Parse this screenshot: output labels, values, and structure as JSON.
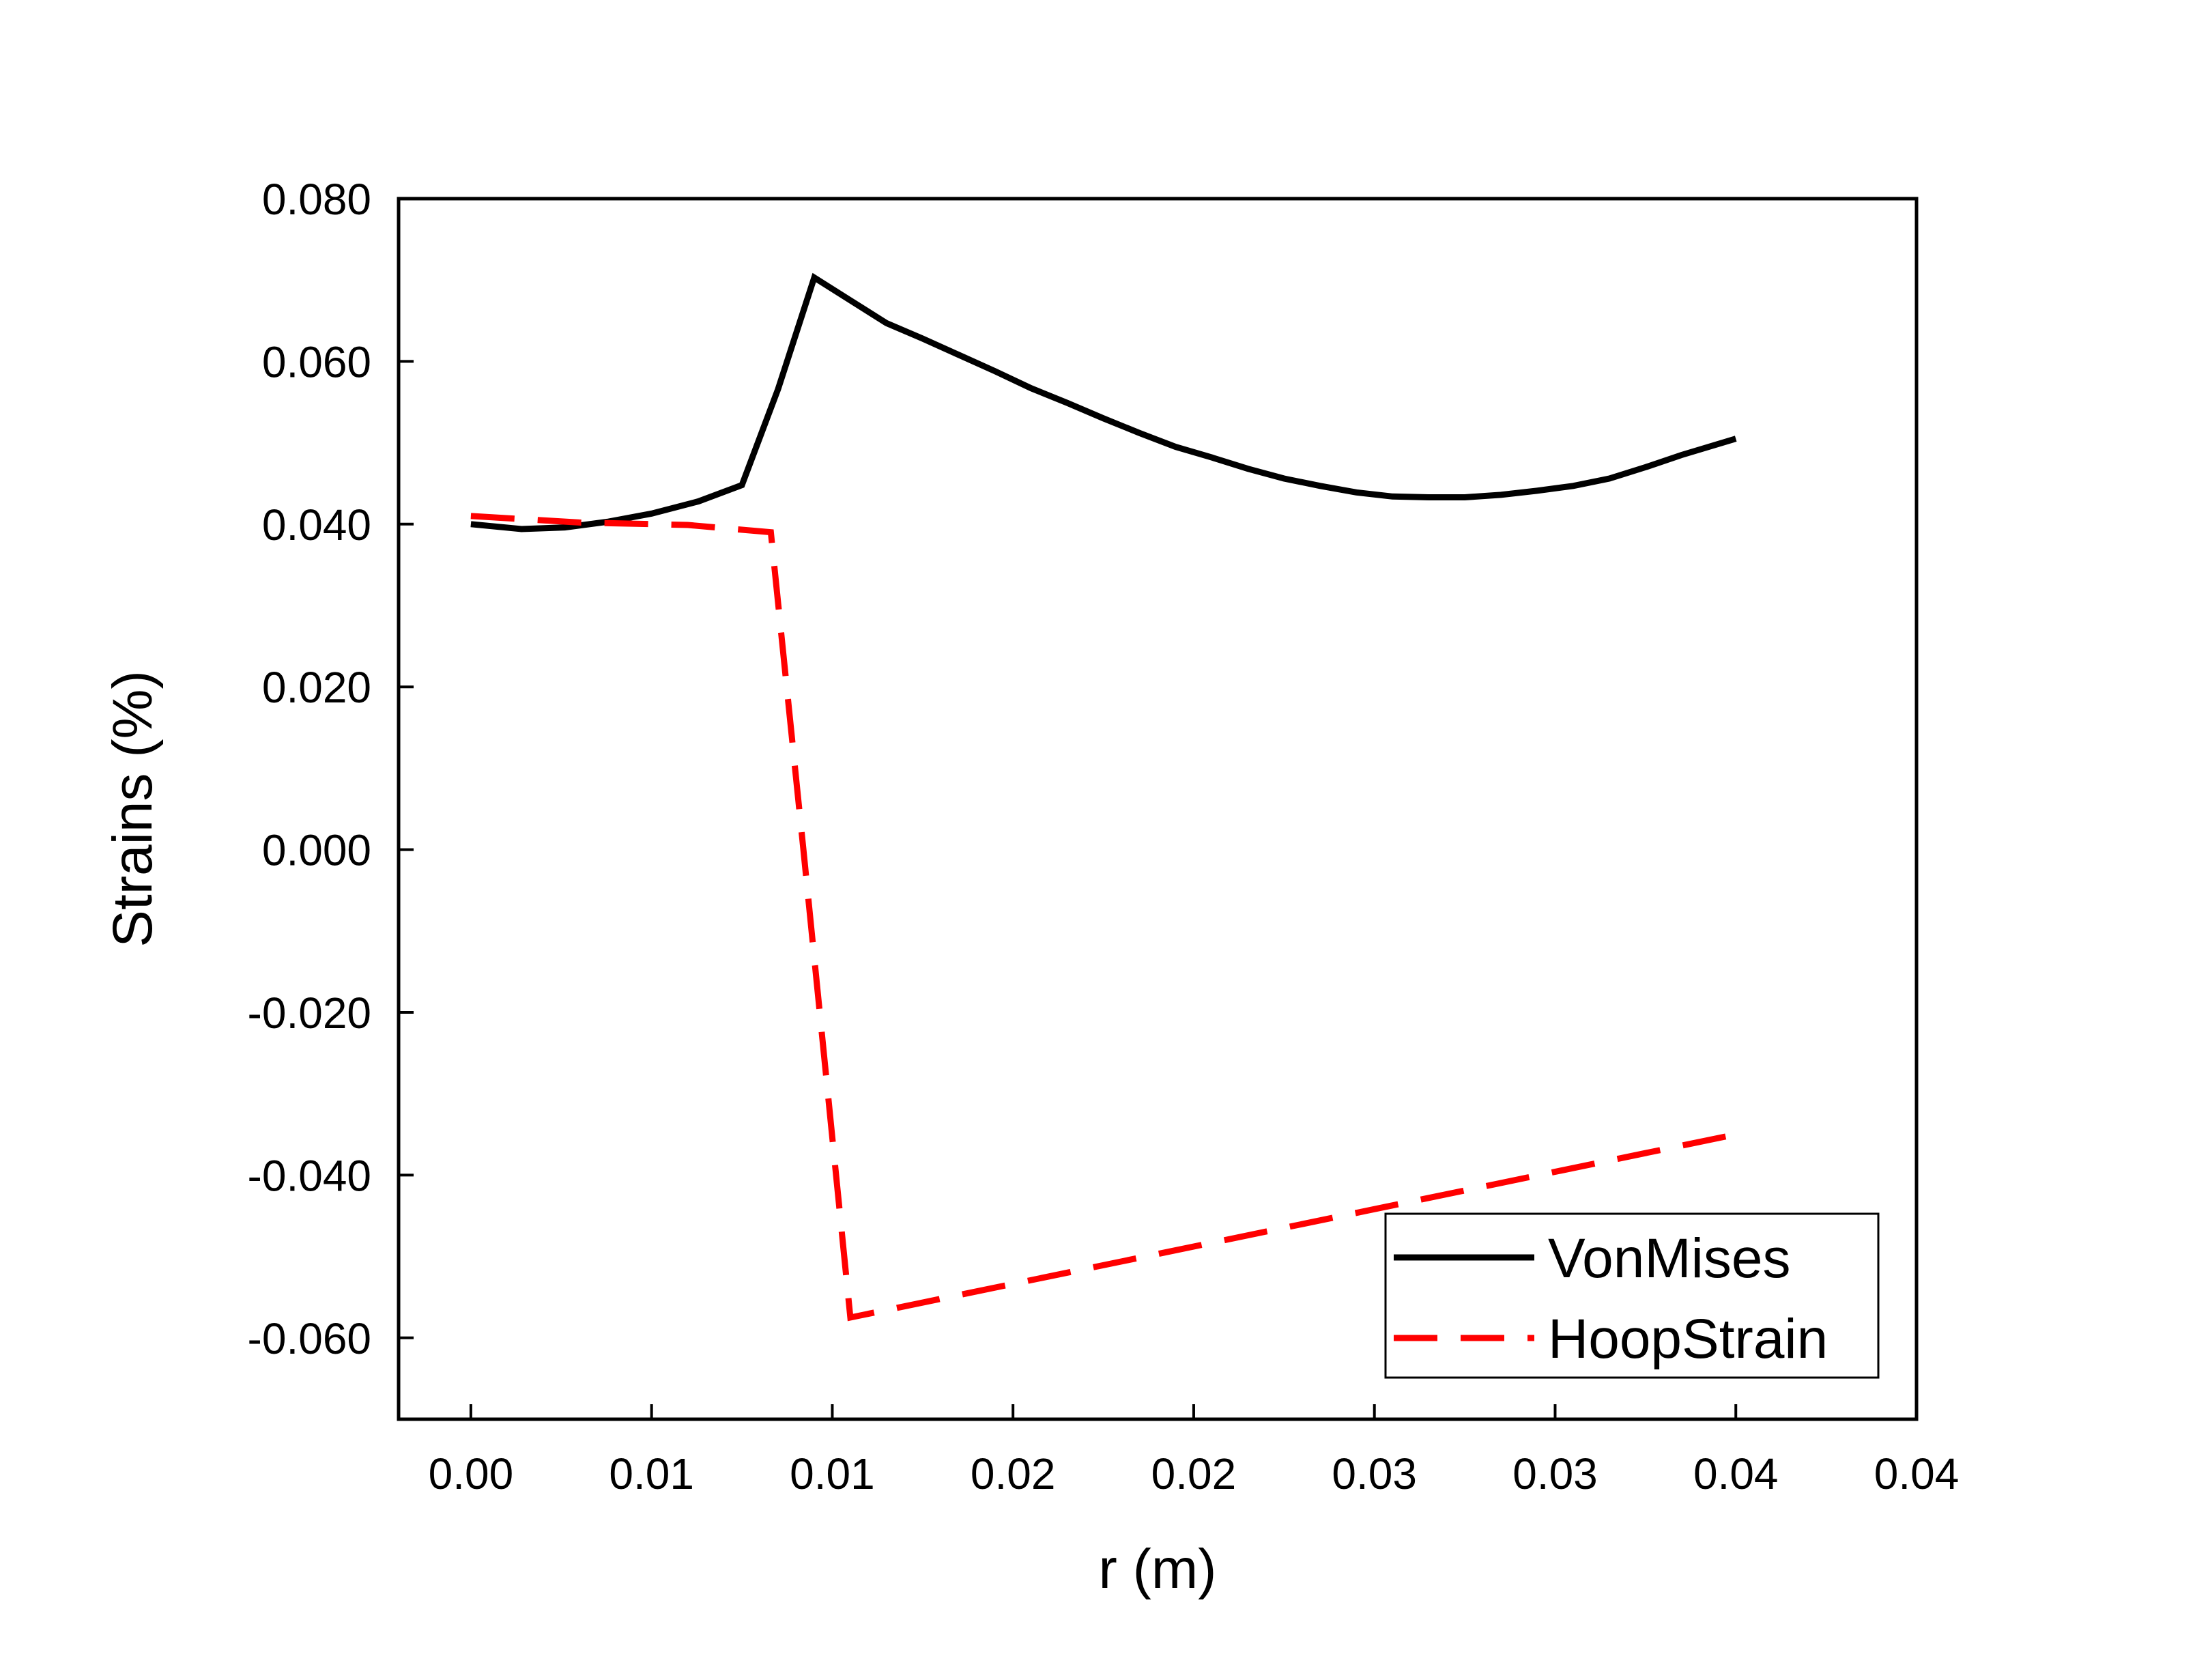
{
  "chart_data": {
    "type": "line",
    "title": "",
    "xlabel": "r (m)",
    "ylabel": "Strains (%)",
    "xlim": [
      -0.002,
      0.04
    ],
    "ylim": [
      -0.07,
      0.08
    ],
    "x_ticks": [
      0.0,
      0.005,
      0.01,
      0.015,
      0.02,
      0.025,
      0.03,
      0.035,
      0.04
    ],
    "x_tick_labels": [
      "0.00",
      "0.01",
      "0.01",
      "0.02",
      "0.02",
      "0.03",
      "0.03",
      "0.04",
      "0.04"
    ],
    "y_ticks": [
      0.08,
      0.06,
      0.04,
      0.02,
      0.0,
      -0.02,
      -0.04,
      -0.06
    ],
    "y_tick_labels": [
      "0.080",
      "0.060",
      "0.040",
      "0.020",
      "0.000",
      "-0.020",
      "-0.040",
      "-0.060"
    ],
    "grid": false,
    "legend_position": "bottom-right",
    "series": [
      {
        "name": "VonMises",
        "color": "#000000",
        "style": "solid",
        "x": [
          0.0,
          0.0014,
          0.0026,
          0.0038,
          0.005,
          0.0063,
          0.0075,
          0.0085,
          0.0095,
          0.0105,
          0.0115,
          0.0125,
          0.0135,
          0.0145,
          0.0155,
          0.0165,
          0.0175,
          0.0185,
          0.0195,
          0.0205,
          0.0215,
          0.0225,
          0.0235,
          0.0245,
          0.0255,
          0.0265,
          0.0275,
          0.0285,
          0.0295,
          0.0305,
          0.0315,
          0.0325,
          0.0335,
          0.035
        ],
        "y": [
          0.04,
          0.0394,
          0.0396,
          0.0403,
          0.0413,
          0.0428,
          0.0448,
          0.0566,
          0.0703,
          0.0675,
          0.0647,
          0.0628,
          0.0608,
          0.0588,
          0.0567,
          0.0549,
          0.053,
          0.0512,
          0.0495,
          0.0482,
          0.0468,
          0.0456,
          0.0447,
          0.0439,
          0.0434,
          0.0433,
          0.0433,
          0.0436,
          0.0441,
          0.0447,
          0.0456,
          0.047,
          0.0485,
          0.0505
        ]
      },
      {
        "name": "HoopStrain",
        "color": "#ff0000",
        "style": "dashed",
        "x": [
          0.0,
          0.003,
          0.006,
          0.0083,
          0.0092,
          0.0105,
          0.035
        ],
        "y": [
          0.041,
          0.0402,
          0.0399,
          0.039,
          0.0,
          -0.0575,
          -0.035
        ]
      }
    ]
  }
}
